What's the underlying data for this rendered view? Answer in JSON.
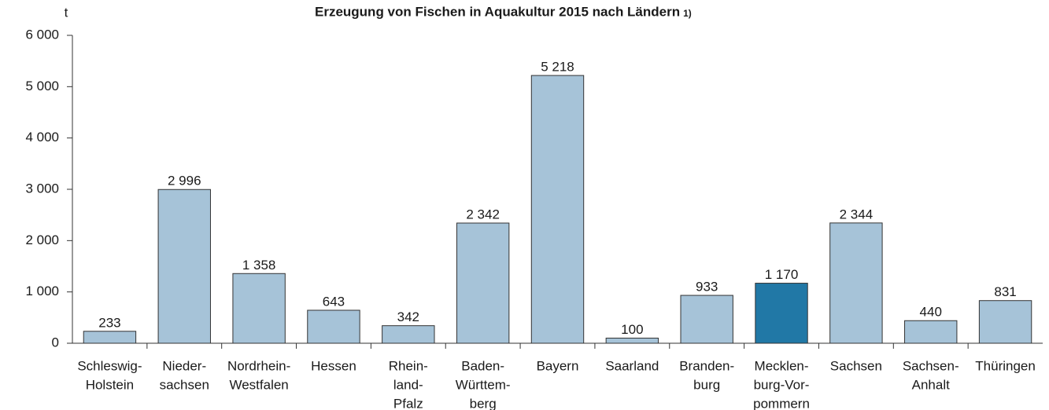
{
  "chart_data": {
    "type": "bar",
    "title": "Erzeugung von Fischen in Aquakultur 2015 nach Ländern",
    "title_note": "1)",
    "y_label": "t",
    "categories": [
      [
        "Schleswig-",
        "Holstein"
      ],
      [
        "Nieder-",
        "sachsen"
      ],
      [
        "Nordrhein-",
        "Westfalen"
      ],
      [
        "Hessen"
      ],
      [
        "Rhein-",
        "land-",
        "Pfalz"
      ],
      [
        "Baden-",
        "Württem-",
        "berg"
      ],
      [
        "Bayern"
      ],
      [
        "Saarland"
      ],
      [
        "Branden-",
        "burg"
      ],
      [
        "Mecklen-",
        "burg-Vor-",
        "pommern"
      ],
      [
        "Sachsen"
      ],
      [
        "Sachsen-",
        "Anhalt"
      ],
      [
        "Thüringen"
      ]
    ],
    "values": [
      233,
      2996,
      1358,
      643,
      342,
      2342,
      5218,
      100,
      933,
      1170,
      2344,
      440,
      831
    ],
    "value_labels": [
      "233",
      "2 996",
      "1 358",
      "643",
      "342",
      "2 342",
      "5 218",
      "100",
      "933",
      "1 170",
      "2 344",
      "440",
      "831"
    ],
    "colors": [
      "#a6c3d8",
      "#a6c3d8",
      "#a6c3d8",
      "#a6c3d8",
      "#a6c3d8",
      "#a6c3d8",
      "#a6c3d8",
      "#a6c3d8",
      "#a6c3d8",
      "#2178a6",
      "#a6c3d8",
      "#a6c3d8",
      "#a6c3d8"
    ],
    "ylim": [
      0,
      6000
    ],
    "yticks": [
      0,
      {
        "value": 1000,
        "label": "1 000"
      },
      {
        "value": 2000,
        "label": "2 000"
      },
      {
        "value": 3000,
        "label": "3 000"
      },
      {
        "value": 4000,
        "label": "4 000"
      },
      {
        "value": 5000,
        "label": "5 000"
      },
      {
        "value": 6000,
        "label": "6 000"
      }
    ],
    "grid": false
  }
}
